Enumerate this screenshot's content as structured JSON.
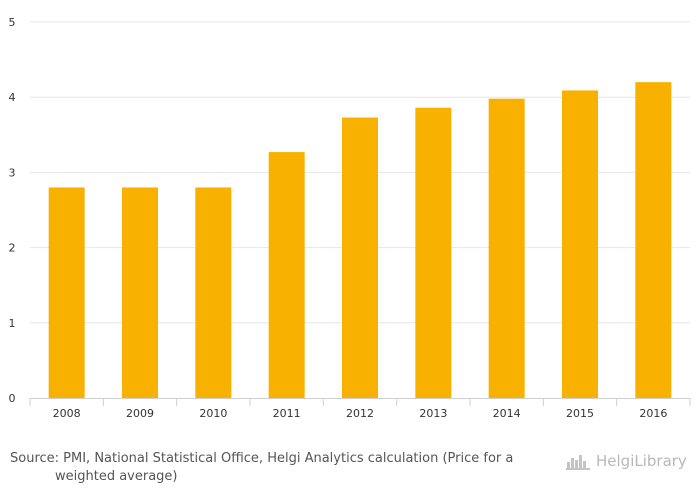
{
  "chart_data": {
    "type": "bar",
    "categories": [
      "2008",
      "2009",
      "2010",
      "2011",
      "2012",
      "2013",
      "2014",
      "2015",
      "2016"
    ],
    "values": [
      2.8,
      2.8,
      2.8,
      3.27,
      3.73,
      3.86,
      3.98,
      4.09,
      4.2
    ],
    "ylim": [
      0,
      5
    ],
    "yticks": [
      0,
      1,
      2,
      3,
      4,
      5
    ],
    "bar_color": "#f9b100",
    "grid": true,
    "title": "",
    "xlabel": "",
    "ylabel": ""
  },
  "footer": {
    "source_line1": "Source: PMI, National Statistical Office, Helgi Analytics calculation (Price for a",
    "source_line2": "weighted average)",
    "brand_name": "HelgiLibrary"
  },
  "icons": {
    "brand_logo": "helgi-library-logo-icon"
  }
}
